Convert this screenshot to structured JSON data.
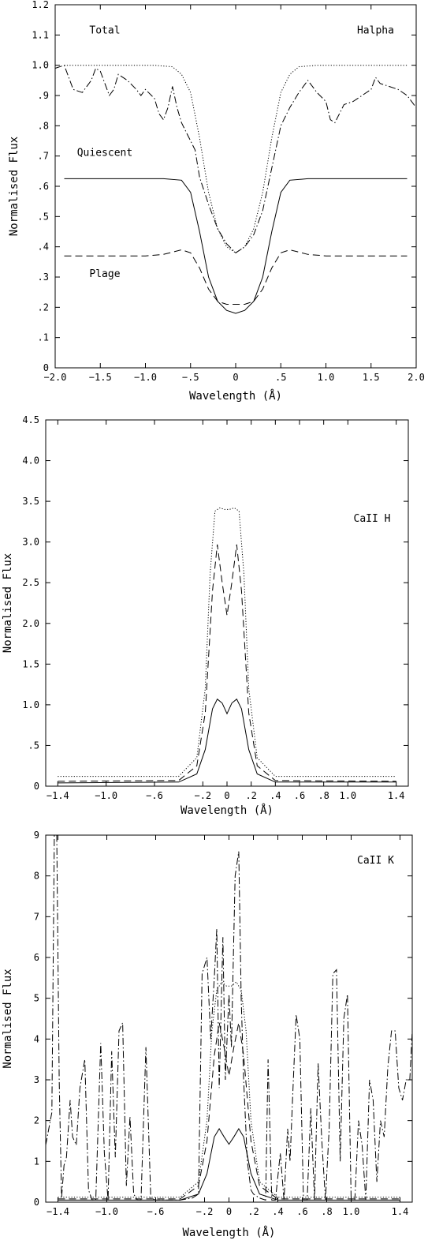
{
  "chart_data": [
    {
      "type": "line",
      "xlabel": "Wavelength (Å)",
      "ylabel": "Normalised Flux",
      "xlim": [
        -2.0,
        2.0
      ],
      "ylim": [
        0,
        1.2
      ],
      "xticks": [
        -2.0,
        -1.5,
        -1.0,
        -0.5,
        0,
        0.5,
        1.0,
        1.5,
        2.0
      ],
      "xtick_labels": [
        "−2.0",
        "−1.5",
        "−1.0",
        "−.5",
        "0",
        ".5",
        "1.0",
        "1.5",
        "2.0"
      ],
      "yticks": [
        0,
        0.1,
        0.2,
        0.3,
        0.4,
        0.5,
        0.6,
        0.7,
        0.8,
        0.9,
        1.0,
        1.1,
        1.2
      ],
      "ytick_labels": [
        "0",
        ".1",
        ".2",
        ".3",
        ".4",
        ".5",
        ".6",
        ".7",
        ".8",
        ".9",
        "1.0",
        "1.1",
        "1.2"
      ],
      "annotations": [
        {
          "text": "Total",
          "x": -1.45,
          "y": 1.105
        },
        {
          "text": "Quiescent",
          "x": -1.45,
          "y": 0.7
        },
        {
          "text": "Plage",
          "x": -1.45,
          "y": 0.3
        },
        {
          "text": "Halpha",
          "x": 1.55,
          "y": 1.105
        }
      ],
      "series": [
        {
          "style": "solid",
          "x": [
            -1.9,
            -0.8,
            -0.6,
            -0.5,
            -0.4,
            -0.3,
            -0.2,
            -0.1,
            0,
            0.1,
            0.2,
            0.3,
            0.4,
            0.5,
            0.6,
            0.8,
            1.9
          ],
          "y": [
            0.625,
            0.625,
            0.62,
            0.58,
            0.45,
            0.3,
            0.22,
            0.19,
            0.18,
            0.19,
            0.22,
            0.3,
            0.45,
            0.58,
            0.62,
            0.625,
            0.625
          ]
        },
        {
          "style": "dashed",
          "x": [
            -1.9,
            -1.0,
            -0.8,
            -0.6,
            -0.5,
            -0.4,
            -0.3,
            -0.2,
            -0.1,
            0,
            0.1,
            0.2,
            0.3,
            0.4,
            0.5,
            0.6,
            0.8,
            1.0,
            1.9
          ],
          "y": [
            0.37,
            0.37,
            0.375,
            0.39,
            0.38,
            0.33,
            0.26,
            0.22,
            0.21,
            0.21,
            0.21,
            0.22,
            0.26,
            0.33,
            0.38,
            0.39,
            0.375,
            0.37,
            0.37
          ]
        },
        {
          "style": "dotted",
          "x": [
            -1.9,
            -0.9,
            -0.7,
            -0.6,
            -0.5,
            -0.4,
            -0.3,
            -0.2,
            -0.1,
            0,
            0.1,
            0.2,
            0.3,
            0.4,
            0.5,
            0.6,
            0.7,
            0.9,
            1.9
          ],
          "y": [
            1.0,
            1.0,
            0.995,
            0.97,
            0.91,
            0.76,
            0.58,
            0.46,
            0.4,
            0.38,
            0.4,
            0.46,
            0.58,
            0.76,
            0.91,
            0.97,
            0.995,
            1.0,
            1.0
          ]
        },
        {
          "style": "dashdot",
          "x": [
            -2.0,
            -1.9,
            -1.8,
            -1.7,
            -1.6,
            -1.55,
            -1.5,
            -1.4,
            -1.35,
            -1.3,
            -1.2,
            -1.1,
            -1.05,
            -1.0,
            -0.9,
            -0.85,
            -0.8,
            -0.75,
            -0.7,
            -0.65,
            -0.6,
            -0.55,
            -0.5,
            -0.45,
            -0.4,
            -0.3,
            -0.2,
            -0.1,
            0,
            0.1,
            0.2,
            0.3,
            0.4,
            0.5,
            0.6,
            0.7,
            0.8,
            0.9,
            1.0,
            1.05,
            1.1,
            1.2,
            1.3,
            1.4,
            1.5,
            1.55,
            1.6,
            1.7,
            1.8,
            1.9,
            2.0
          ],
          "y": [
            0.99,
            1.0,
            0.92,
            0.91,
            0.95,
            0.99,
            0.98,
            0.9,
            0.92,
            0.97,
            0.95,
            0.92,
            0.9,
            0.92,
            0.89,
            0.84,
            0.82,
            0.86,
            0.93,
            0.86,
            0.81,
            0.78,
            0.75,
            0.72,
            0.63,
            0.54,
            0.46,
            0.41,
            0.38,
            0.4,
            0.44,
            0.52,
            0.66,
            0.8,
            0.86,
            0.91,
            0.95,
            0.91,
            0.88,
            0.82,
            0.81,
            0.87,
            0.88,
            0.9,
            0.92,
            0.96,
            0.94,
            0.93,
            0.92,
            0.9,
            0.86
          ]
        }
      ]
    },
    {
      "type": "line",
      "xlabel": "Wavelength (Å)",
      "ylabel": "Normalised Flux",
      "xlim": [
        -1.5,
        1.5
      ],
      "ylim": [
        0,
        4.5
      ],
      "xticks": [
        -1.4,
        -1.0,
        -0.6,
        -0.2,
        0,
        0.2,
        0.4,
        0.6,
        0.8,
        1.0,
        1.4
      ],
      "xtick_labels": [
        "−1.4",
        "−1.0",
        "−.6",
        "−.2",
        "0",
        ".2",
        ".4",
        ".6",
        ".8",
        "1.0",
        "1.4"
      ],
      "yticks": [
        0,
        0.5,
        1.0,
        1.5,
        2.0,
        2.5,
        3.0,
        3.5,
        4.0,
        4.5
      ],
      "ytick_labels": [
        "0",
        ".5",
        "1.0",
        "1.5",
        "2.0",
        "2.5",
        "3.0",
        "3.5",
        "4.0",
        "4.5"
      ],
      "annotations": [
        {
          "text": "CaII H",
          "x": 1.2,
          "y": 3.25
        }
      ],
      "series": [
        {
          "style": "solid",
          "x": [
            -1.4,
            -0.4,
            -0.25,
            -0.18,
            -0.12,
            -0.08,
            -0.04,
            0,
            0.04,
            0.08,
            0.12,
            0.18,
            0.25,
            0.4,
            1.4
          ],
          "y": [
            0.04,
            0.05,
            0.15,
            0.45,
            0.95,
            1.07,
            1.02,
            0.89,
            1.02,
            1.07,
            0.95,
            0.45,
            0.15,
            0.05,
            0.05
          ]
        },
        {
          "style": "dashed",
          "x": [
            -1.4,
            -0.4,
            -0.25,
            -0.18,
            -0.12,
            -0.08,
            -0.04,
            0,
            0.04,
            0.08,
            0.12,
            0.18,
            0.25,
            0.4,
            1.4
          ],
          "y": [
            0.06,
            0.07,
            0.25,
            0.9,
            2.4,
            2.97,
            2.5,
            2.1,
            2.5,
            2.97,
            2.4,
            0.9,
            0.25,
            0.07,
            0.06
          ]
        },
        {
          "style": "dotted",
          "x": [
            -1.4,
            -0.4,
            -0.25,
            -0.18,
            -0.14,
            -0.1,
            -0.06,
            -0.02,
            0.02,
            0.06,
            0.1,
            0.14,
            0.18,
            0.25,
            0.4,
            1.4
          ],
          "y": [
            0.12,
            0.12,
            0.35,
            1.2,
            2.6,
            3.38,
            3.42,
            3.4,
            3.4,
            3.42,
            3.38,
            2.6,
            1.2,
            0.35,
            0.12,
            0.12
          ]
        }
      ]
    },
    {
      "type": "line",
      "xlabel": "Wavelength (Å)",
      "ylabel": "Normalised Flux",
      "xlim": [
        -1.5,
        1.5
      ],
      "ylim": [
        0,
        9
      ],
      "xticks": [
        -1.4,
        -1.0,
        -0.6,
        -0.2,
        0,
        0.2,
        0.4,
        0.6,
        0.8,
        1.0,
        1.4
      ],
      "xtick_labels": [
        "−1.4",
        "−1.0",
        "−.6",
        "−.2",
        "0",
        ".2",
        ".4",
        ".6",
        ".8",
        "1.0",
        "1.4"
      ],
      "yticks": [
        0,
        1,
        2,
        3,
        4,
        5,
        6,
        7,
        8,
        9
      ],
      "ytick_labels": [
        "0",
        "1",
        "2",
        "3",
        "4",
        "5",
        "6",
        "7",
        "8",
        "9"
      ],
      "annotations": [
        {
          "text": "CaII K",
          "x": 1.2,
          "y": 8.3
        }
      ],
      "series": [
        {
          "style": "solid",
          "x": [
            -1.4,
            -0.4,
            -0.25,
            -0.18,
            -0.12,
            -0.08,
            -0.04,
            0,
            0.04,
            0.08,
            0.12,
            0.18,
            0.25,
            0.4,
            1.4
          ],
          "y": [
            0.05,
            0.05,
            0.2,
            0.7,
            1.6,
            1.8,
            1.6,
            1.42,
            1.6,
            1.8,
            1.6,
            0.7,
            0.2,
            0.05,
            0.05
          ]
        },
        {
          "style": "dashed",
          "x": [
            -1.4,
            -0.4,
            -0.25,
            -0.18,
            -0.12,
            -0.08,
            -0.04,
            0,
            0.04,
            0.08,
            0.12,
            0.18,
            0.25,
            0.4,
            1.4
          ],
          "y": [
            0.08,
            0.08,
            0.4,
            1.5,
            3.6,
            4.4,
            3.8,
            3.1,
            3.8,
            4.4,
            3.6,
            1.5,
            0.4,
            0.08,
            0.08
          ]
        },
        {
          "style": "dotted",
          "x": [
            -1.4,
            -0.4,
            -0.25,
            -0.18,
            -0.14,
            -0.1,
            -0.06,
            -0.02,
            0.02,
            0.06,
            0.1,
            0.14,
            0.18,
            0.25,
            0.4,
            1.4
          ],
          "y": [
            0.12,
            0.12,
            0.5,
            2.0,
            4.2,
            5.2,
            5.4,
            5.3,
            5.3,
            5.4,
            5.2,
            4.2,
            2.0,
            0.5,
            0.12,
            0.12
          ]
        },
        {
          "style": "dashdot",
          "x": [
            -1.5,
            -1.45,
            -1.43,
            -1.41,
            -1.39,
            -1.37,
            -1.35,
            -1.33,
            -1.3,
            -1.28,
            -1.25,
            -1.22,
            -1.18,
            -1.15,
            -1.12,
            -1.09,
            -1.05,
            -1.02,
            -0.99,
            -0.96,
            -0.93,
            -0.9,
            -0.87,
            -0.84,
            -0.81,
            -0.78,
            -0.75,
            -0.72,
            -0.68,
            -0.64,
            -0.6,
            -0.56,
            -0.52,
            -0.48,
            -0.44,
            -0.4,
            -0.3,
            -0.25,
            -0.22,
            -0.18,
            -0.15,
            -0.12,
            -0.1,
            -0.08,
            -0.05,
            -0.03,
            0,
            0.02,
            0.05,
            0.08,
            0.1,
            0.12,
            0.15,
            0.18,
            0.2,
            0.25,
            0.3,
            0.32,
            0.35,
            0.38,
            0.42,
            0.45,
            0.48,
            0.5,
            0.52,
            0.55,
            0.58,
            0.61,
            0.64,
            0.67,
            0.7,
            0.73,
            0.76,
            0.79,
            0.82,
            0.85,
            0.88,
            0.91,
            0.94,
            0.97,
            1.0,
            1.03,
            1.06,
            1.09,
            1.12,
            1.15,
            1.18,
            1.21,
            1.24,
            1.27,
            1.3,
            1.33,
            1.36,
            1.39,
            1.42,
            1.45,
            1.48,
            1.5
          ],
          "y": [
            1.4,
            2.2,
            9.0,
            9.0,
            3.0,
            0.1,
            0.9,
            1.1,
            2.5,
            1.6,
            1.4,
            2.8,
            3.5,
            0.3,
            0.05,
            0.05,
            3.9,
            1.2,
            0.05,
            3.7,
            1.1,
            4.2,
            4.4,
            0.4,
            2.1,
            0.2,
            0.05,
            0.05,
            3.8,
            0.1,
            0.05,
            0.05,
            0.05,
            0.05,
            0.05,
            0.05,
            0.1,
            0.2,
            5.6,
            6.0,
            4.0,
            5.5,
            6.7,
            2.8,
            6.5,
            3.0,
            5.1,
            3.8,
            8.0,
            8.6,
            5.0,
            3.0,
            1.0,
            0.3,
            0.2,
            0.1,
            0.05,
            3.5,
            0.05,
            0.05,
            1.2,
            0.05,
            1.8,
            1.0,
            2.5,
            4.6,
            4.0,
            0.05,
            0.05,
            2.3,
            0.05,
            3.4,
            1.5,
            0.05,
            1.8,
            5.6,
            5.7,
            1.0,
            4.5,
            5.1,
            0.05,
            0.05,
            2.0,
            1.4,
            0.05,
            3.0,
            2.5,
            0.5,
            2.0,
            1.6,
            3.3,
            4.2,
            4.2,
            2.8,
            2.5,
            3.0,
            3.0,
            4.2
          ]
        }
      ]
    }
  ]
}
